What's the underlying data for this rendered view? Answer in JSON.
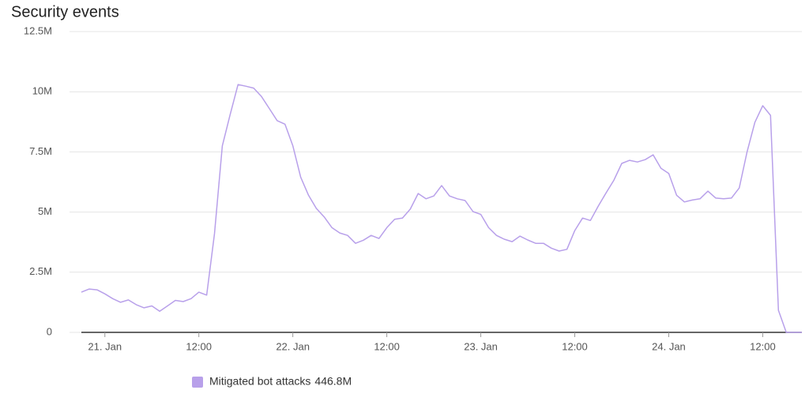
{
  "chart_data": {
    "type": "line",
    "title": "Security events",
    "categories": [
      null,
      null,
      null,
      "21. Jan",
      null,
      null,
      null,
      null,
      null,
      null,
      null,
      null,
      null,
      null,
      null,
      "12:00",
      null,
      null,
      null,
      null,
      null,
      null,
      null,
      null,
      null,
      null,
      null,
      "22. Jan",
      null,
      null,
      null,
      null,
      null,
      null,
      null,
      null,
      null,
      null,
      null,
      "12:00",
      null,
      null,
      null,
      null,
      null,
      null,
      null,
      null,
      null,
      null,
      null,
      "23. Jan",
      null,
      null,
      null,
      null,
      null,
      null,
      null,
      null,
      null,
      null,
      null,
      "12:00",
      null,
      null,
      null,
      null,
      null,
      null,
      null,
      null,
      null,
      null,
      null,
      "24. Jan",
      null,
      null,
      null,
      null,
      null,
      null,
      null,
      null,
      null,
      null,
      null,
      "12:00",
      null,
      null,
      null,
      null,
      null
    ],
    "series": [
      {
        "name": "Mitigated bot attacks",
        "total": "446.8M",
        "color": "#b8a0ea",
        "values": [
          1.67,
          1.8,
          1.77,
          1.6,
          1.4,
          1.25,
          1.35,
          1.15,
          1.02,
          1.1,
          0.88,
          1.1,
          1.33,
          1.28,
          1.4,
          1.67,
          1.55,
          4.1,
          7.75,
          9.05,
          10.3,
          10.23,
          10.15,
          9.8,
          9.3,
          8.8,
          8.65,
          7.75,
          6.45,
          5.7,
          5.15,
          4.8,
          4.35,
          4.13,
          4.03,
          3.7,
          3.83,
          4.03,
          3.9,
          4.35,
          4.7,
          4.75,
          5.12,
          5.77,
          5.55,
          5.67,
          6.1,
          5.67,
          5.55,
          5.48,
          5.02,
          4.9,
          4.35,
          4.03,
          3.87,
          3.77,
          4.0,
          3.84,
          3.7,
          3.7,
          3.5,
          3.38,
          3.45,
          4.23,
          4.75,
          4.65,
          5.25,
          5.8,
          6.33,
          7.02,
          7.15,
          7.08,
          7.18,
          7.38,
          6.82,
          6.6,
          5.7,
          5.42,
          5.5,
          5.55,
          5.87,
          5.58,
          5.55,
          5.58,
          6.0,
          7.5,
          8.73,
          9.42,
          9.02,
          0.92,
          0,
          0,
          0
        ]
      }
    ],
    "ylim": [
      0,
      12.5
    ],
    "yticks": [
      0,
      {
        "value": 2.5,
        "label": "2.5M"
      },
      {
        "value": 5,
        "label": "5M"
      },
      {
        "value": 7.5,
        "label": "7.5M"
      },
      {
        "value": 10,
        "label": "10M"
      },
      {
        "value": 12.5,
        "label": "12.5M"
      }
    ],
    "grid": true
  }
}
